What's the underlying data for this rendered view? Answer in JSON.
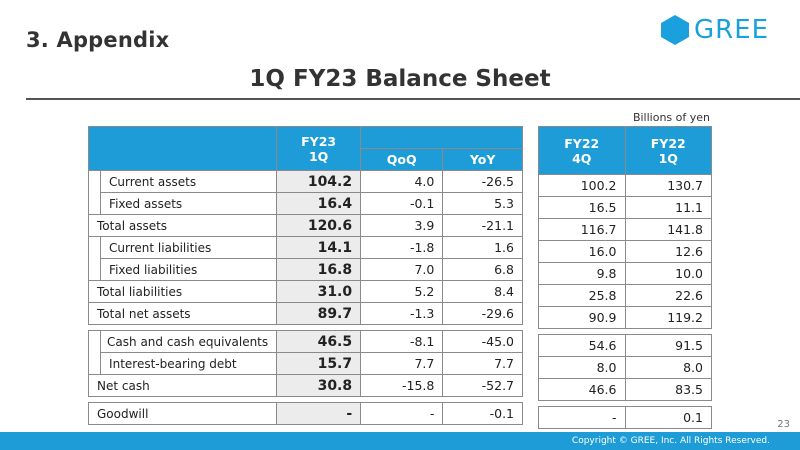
{
  "header": {
    "section": "3. Appendix",
    "logo_text": "GREE",
    "title": "1Q FY23 Balance Sheet",
    "unit_note": "Billions of yen"
  },
  "colors": {
    "accent": "#1e9cd7",
    "shaded_cell": "#ececec"
  },
  "table": {
    "col_fy23_line1": "FY23",
    "col_fy23_line2": "1Q",
    "col_qoq": "QoQ",
    "col_yoy": "YoY",
    "col_fy22_4q_line1": "FY22",
    "col_fy22_4q_line2": "4Q",
    "col_fy22_1q_line1": "FY22",
    "col_fy22_1q_line2": "1Q",
    "rows": [
      {
        "label": "Current assets",
        "fy23_1q": "104.2",
        "qoq": "4.0",
        "yoy": "-26.5",
        "fy22_4q": "100.2",
        "fy22_1q": "130.7"
      },
      {
        "label": "Fixed assets",
        "fy23_1q": "16.4",
        "qoq": "-0.1",
        "yoy": "5.3",
        "fy22_4q": "16.5",
        "fy22_1q": "11.1"
      },
      {
        "label": "Total assets",
        "fy23_1q": "120.6",
        "qoq": "3.9",
        "yoy": "-21.1",
        "fy22_4q": "116.7",
        "fy22_1q": "141.8"
      },
      {
        "label": "Current liabilities",
        "fy23_1q": "14.1",
        "qoq": "-1.8",
        "yoy": "1.6",
        "fy22_4q": "16.0",
        "fy22_1q": "12.6"
      },
      {
        "label": "Fixed liabilities",
        "fy23_1q": "16.8",
        "qoq": "7.0",
        "yoy": "6.8",
        "fy22_4q": "9.8",
        "fy22_1q": "10.0"
      },
      {
        "label": "Total liabilities",
        "fy23_1q": "31.0",
        "qoq": "5.2",
        "yoy": "8.4",
        "fy22_4q": "25.8",
        "fy22_1q": "22.6"
      },
      {
        "label": "Total net assets",
        "fy23_1q": "89.7",
        "qoq": "-1.3",
        "yoy": "-29.6",
        "fy22_4q": "90.9",
        "fy22_1q": "119.2"
      },
      {
        "label": "Cash and cash equivalents",
        "fy23_1q": "46.5",
        "qoq": "-8.1",
        "yoy": "-45.0",
        "fy22_4q": "54.6",
        "fy22_1q": "91.5"
      },
      {
        "label": "Interest-bearing debt",
        "fy23_1q": "15.7",
        "qoq": "7.7",
        "yoy": "7.7",
        "fy22_4q": "8.0",
        "fy22_1q": "8.0"
      },
      {
        "label": "Net cash",
        "fy23_1q": "30.8",
        "qoq": "-15.8",
        "yoy": "-52.7",
        "fy22_4q": "46.6",
        "fy22_1q": "83.5"
      },
      {
        "label": "Goodwill",
        "fy23_1q": "-",
        "qoq": "-",
        "yoy": "-0.1",
        "fy22_4q": "-",
        "fy22_1q": "0.1"
      }
    ]
  },
  "footer": {
    "page_number": "23",
    "copyright": "Copyright © GREE, Inc. All Rights Reserved."
  }
}
